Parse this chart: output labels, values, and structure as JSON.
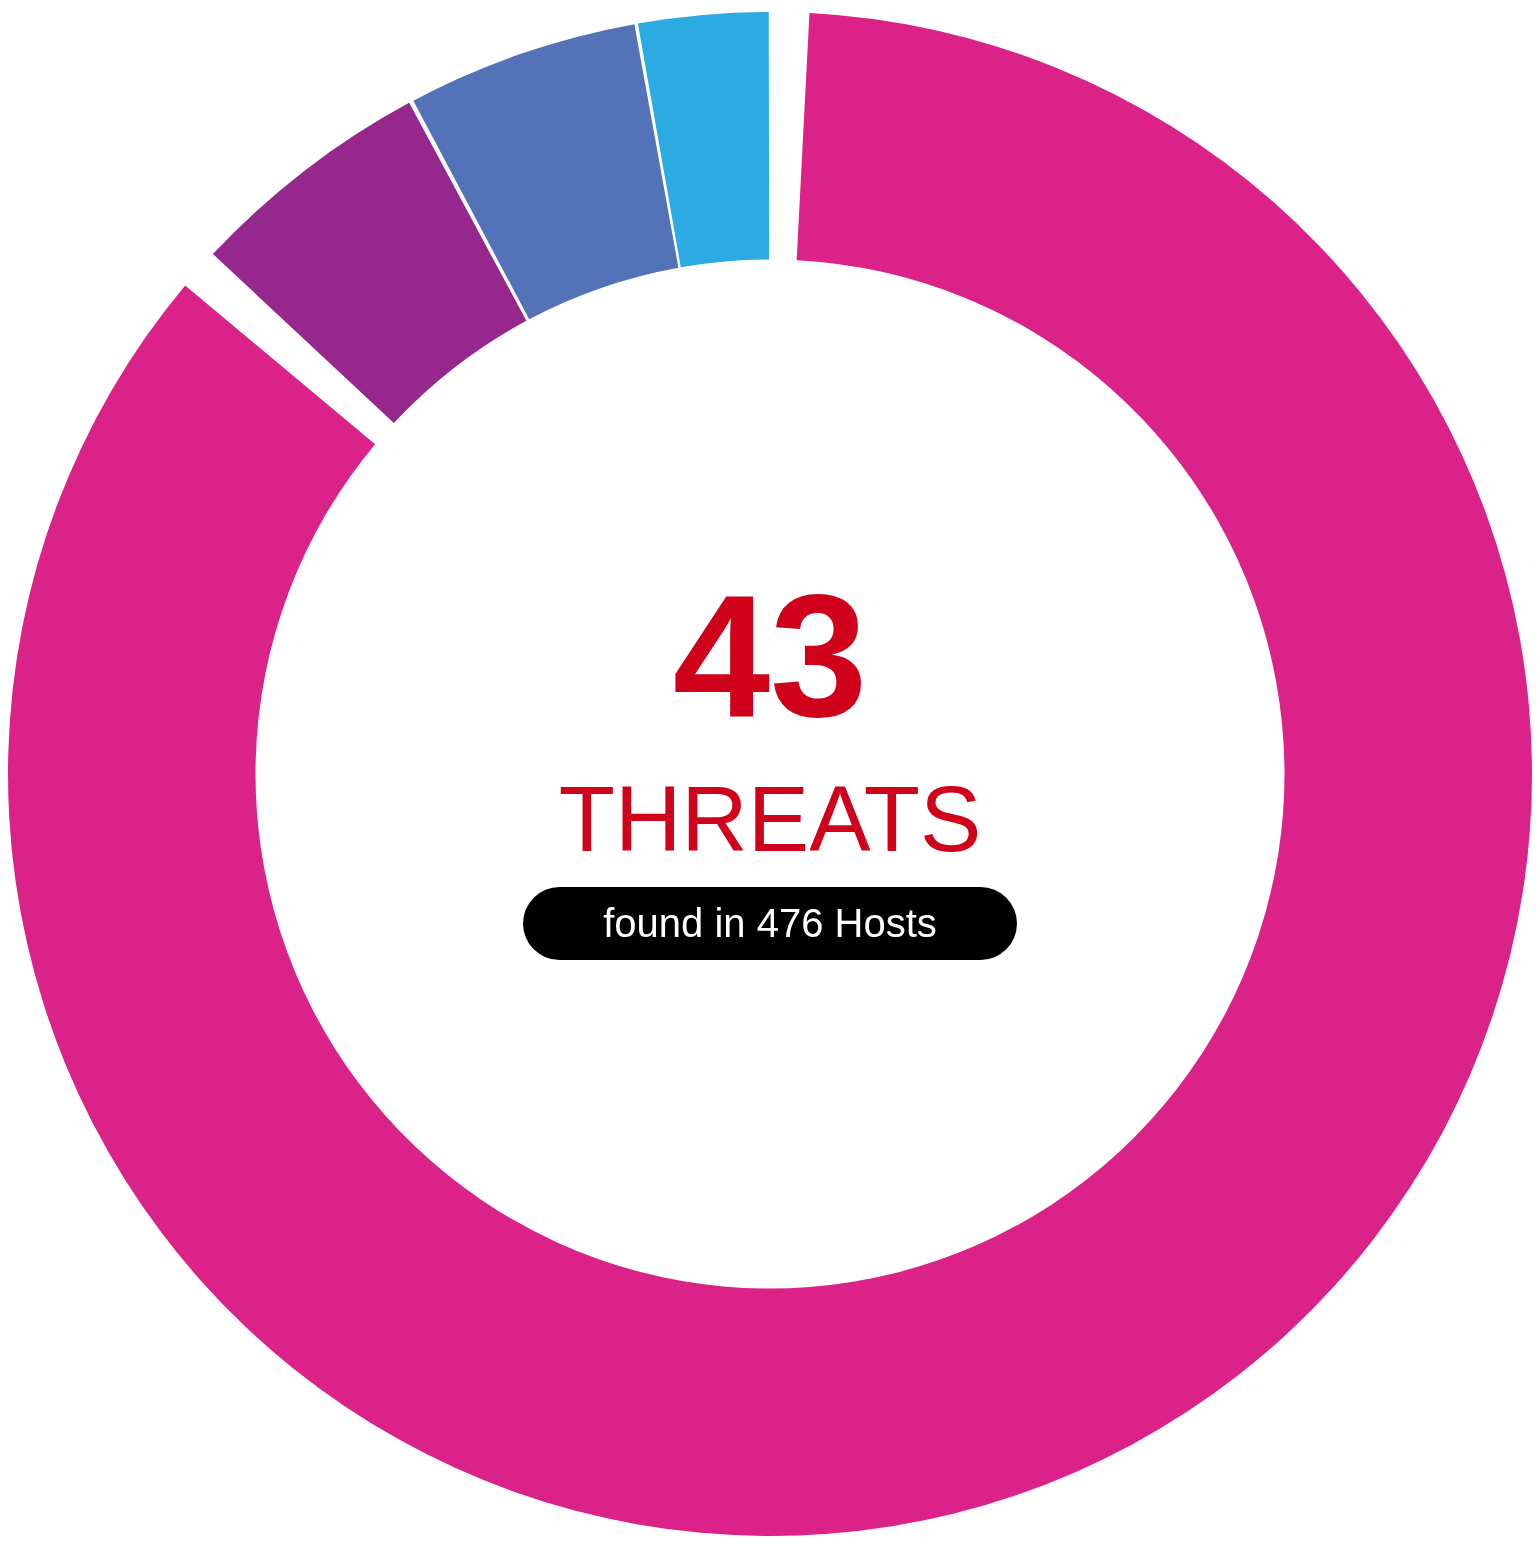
{
  "chart_data": {
    "type": "donut",
    "title": "43",
    "subtitle": "THREATS",
    "annotations": [
      "found in 476 Hosts"
    ],
    "categories": [
      null,
      null,
      null,
      null
    ],
    "values": [
      86.9,
      5.3,
      5.0,
      2.8
    ],
    "colors": [
      "#da2289",
      "#96278c",
      "#5472b8",
      "#2caae2"
    ],
    "legend": false
  }
}
